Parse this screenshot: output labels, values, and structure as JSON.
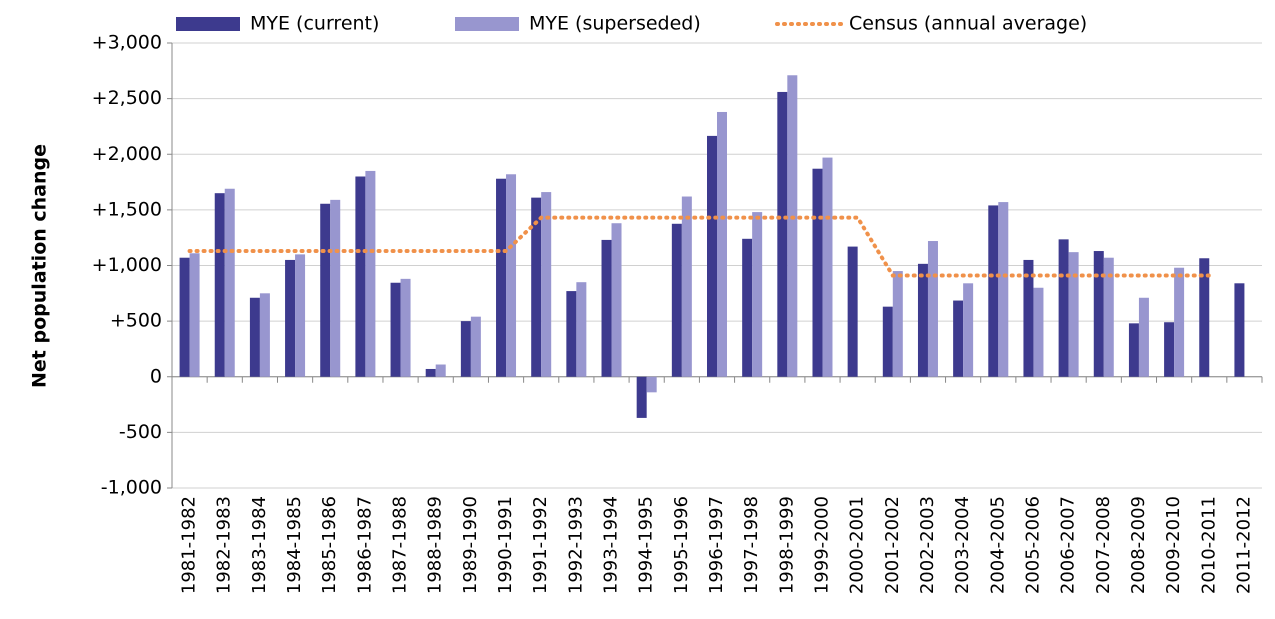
{
  "chart_data": {
    "type": "bar",
    "y_label": "Net population change",
    "legend": "top",
    "grid": true,
    "categories": [
      "1981-1982",
      "1982-1983",
      "1983-1984",
      "1984-1985",
      "1985-1986",
      "1986-1987",
      "1987-1988",
      "1988-1989",
      "1989-1990",
      "1990-1991",
      "1991-1992",
      "1992-1993",
      "1993-1994",
      "1994-1995",
      "1995-1996",
      "1996-1997",
      "1997-1998",
      "1998-1999",
      "1999-2000",
      "2000-2001",
      "2001-2002",
      "2002-2003",
      "2003-2004",
      "2004-2005",
      "2005-2006",
      "2006-2007",
      "2007-2008",
      "2008-2009",
      "2009-2010",
      "2010-2011",
      "2011-2012"
    ],
    "series": [
      {
        "name": "MYE (current)",
        "type": "bar",
        "color": "#3d3a8e",
        "values": [
          1070,
          1650,
          710,
          1050,
          1555,
          1800,
          845,
          70,
          500,
          1780,
          1610,
          770,
          1230,
          -370,
          1375,
          2165,
          1240,
          2560,
          1870,
          1170,
          630,
          1015,
          685,
          1540,
          1050,
          1235,
          1130,
          480,
          490,
          1065,
          840
        ]
      },
      {
        "name": "MYE (superseded)",
        "type": "bar",
        "color": "#9896cf",
        "values": [
          1110,
          1690,
          750,
          1100,
          1590,
          1850,
          880,
          110,
          540,
          1820,
          1660,
          850,
          1380,
          -140,
          1620,
          2380,
          1480,
          2710,
          1970,
          null,
          950,
          1220,
          840,
          1570,
          800,
          1120,
          1070,
          710,
          980,
          null,
          null
        ]
      },
      {
        "name": "Census (annual average)",
        "type": "line",
        "color": "#f0914a",
        "values": [
          1130,
          1130,
          1130,
          1130,
          1130,
          1130,
          1130,
          1130,
          1130,
          1130,
          1430,
          1430,
          1430,
          1430,
          1430,
          1430,
          1430,
          1430,
          1430,
          1430,
          910,
          910,
          910,
          910,
          910,
          910,
          910,
          910,
          910,
          910,
          null
        ]
      }
    ],
    "ylim": [
      -1000,
      3000
    ],
    "yticks": [
      {
        "value": -1000,
        "label": "-1,000"
      },
      -500,
      0,
      {
        "value": 500,
        "label": "+500"
      },
      {
        "value": 1000,
        "label": "+1,000"
      },
      {
        "value": 1500,
        "label": "+1,500"
      },
      {
        "value": 2000,
        "label": "+2,000"
      },
      {
        "value": 2500,
        "label": "+2,500"
      },
      {
        "value": 3000,
        "label": "+3,000"
      }
    ]
  }
}
